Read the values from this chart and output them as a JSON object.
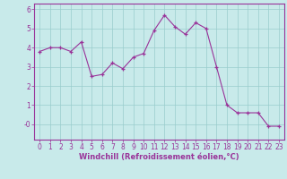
{
  "hours": [
    0,
    1,
    2,
    3,
    4,
    5,
    6,
    7,
    8,
    9,
    10,
    11,
    12,
    13,
    14,
    15,
    16,
    17,
    18,
    19,
    20,
    21,
    22,
    23
  ],
  "values": [
    3.8,
    4.0,
    4.0,
    3.8,
    4.3,
    2.5,
    2.6,
    3.2,
    2.9,
    3.5,
    3.7,
    4.9,
    5.7,
    5.1,
    4.7,
    5.3,
    5.0,
    3.0,
    1.0,
    0.6,
    0.6,
    0.6,
    -0.1,
    -0.1
  ],
  "line_color": "#993399",
  "marker": "+",
  "marker_color": "#993399",
  "bg_color": "#c8eaea",
  "grid_color": "#99cccc",
  "xlabel": "Windchill (Refroidissement éolien,°C)",
  "xlabel_color": "#993399",
  "ylim": [
    -0.8,
    6.3
  ],
  "xlim": [
    -0.5,
    23.5
  ],
  "yticks": [
    0,
    1,
    2,
    3,
    4,
    5,
    6
  ],
  "ytick_labels": [
    "-0",
    "1",
    "2",
    "3",
    "4",
    "5",
    "6"
  ],
  "xticks": [
    0,
    1,
    2,
    3,
    4,
    5,
    6,
    7,
    8,
    9,
    10,
    11,
    12,
    13,
    14,
    15,
    16,
    17,
    18,
    19,
    20,
    21,
    22,
    23
  ],
  "tick_color": "#993399",
  "spine_color": "#993399",
  "font_size": 5.5,
  "xlabel_fontsize": 6.0,
  "line_width": 0.8,
  "marker_size": 3.5
}
